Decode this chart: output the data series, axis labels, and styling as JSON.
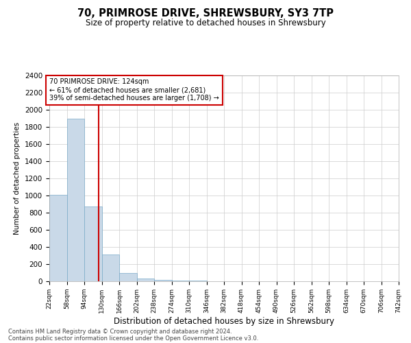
{
  "title": "70, PRIMROSE DRIVE, SHREWSBURY, SY3 7TP",
  "subtitle": "Size of property relative to detached houses in Shrewsbury",
  "xlabel": "Distribution of detached houses by size in Shrewsbury",
  "ylabel": "Number of detached properties",
  "footer_line1": "Contains HM Land Registry data © Crown copyright and database right 2024.",
  "footer_line2": "Contains public sector information licensed under the Open Government Licence v3.0.",
  "annotation_title": "70 PRIMROSE DRIVE: 124sqm",
  "annotation_line1": "← 61% of detached houses are smaller (2,681)",
  "annotation_line2": "39% of semi-detached houses are larger (1,708) →",
  "property_size_sqm": 124,
  "bin_edges": [
    22,
    58,
    94,
    130,
    166,
    202,
    238,
    274,
    310,
    346,
    382,
    418,
    454,
    490,
    526,
    562,
    598,
    634,
    670,
    706,
    742
  ],
  "bin_counts": [
    1010,
    1900,
    870,
    310,
    100,
    35,
    15,
    8,
    5,
    4,
    3,
    2,
    2,
    1,
    1,
    1,
    1,
    0,
    0,
    0
  ],
  "bar_color": "#c9d9e8",
  "bar_edge_color": "#7aaac8",
  "property_line_color": "#cc0000",
  "annotation_box_color": "#cc0000",
  "grid_color": "#cccccc",
  "ylim": [
    0,
    2400
  ],
  "yticks": [
    0,
    200,
    400,
    600,
    800,
    1000,
    1200,
    1400,
    1600,
    1800,
    2000,
    2200,
    2400
  ]
}
